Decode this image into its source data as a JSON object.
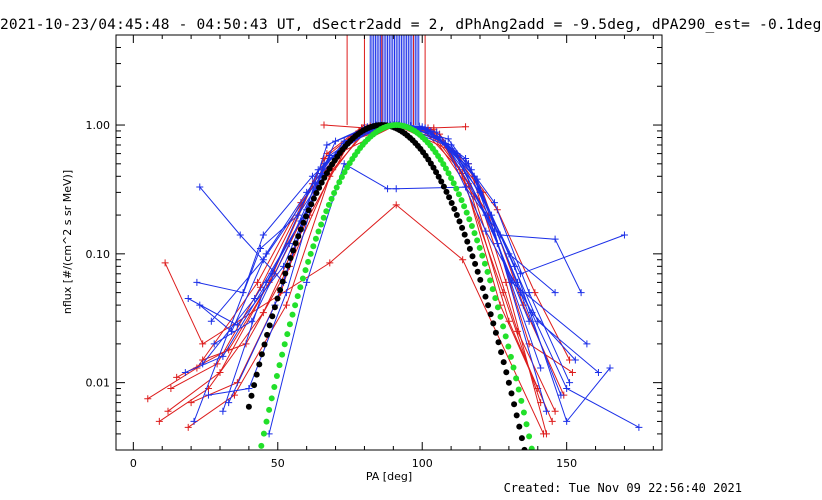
{
  "title": "2021-10-23/04:45:48 - 04:50:43 UT, dSectr2add = 2, dPhAng2add = -9.5deg, dPA290_est= -0.1deg",
  "footer": "Created: Tue Nov 09 22:56:40 2021",
  "colors": {
    "red": "#dd1c1c",
    "blue": "#1b2fe8",
    "green": "#22e02a",
    "black": "#000000",
    "axes": "#000000"
  },
  "chart_data": {
    "type": "line",
    "xlabel": "PA [deg]",
    "ylabel": "nflux [#/(cm^2 s sr MeV)]",
    "xlim": [
      -6,
      183
    ],
    "ylim": [
      0.003,
      5.0
    ],
    "yscale": "log",
    "x_ticks": [
      0,
      50,
      100,
      150
    ],
    "x_tick_labels": [
      "0",
      "50",
      "100",
      "150"
    ],
    "y_ticks": [
      0.01,
      0.1,
      1.0
    ],
    "y_tick_labels": [
      "0.01",
      "0.10",
      "1.00"
    ],
    "series": [
      {
        "color": "red",
        "marker": "+",
        "x": [
          19,
          35,
          53,
          68,
          80,
          92,
          104,
          116,
          130,
          145
        ],
        "y": [
          0.0045,
          0.008,
          0.04,
          0.4,
          0.92,
          1.0,
          0.92,
          0.35,
          0.03,
          0.005
        ]
      },
      {
        "color": "red",
        "marker": "+",
        "x": [
          12,
          30,
          47,
          66,
          79,
          90,
          101,
          113,
          128,
          141
        ],
        "y": [
          0.006,
          0.012,
          0.06,
          0.55,
          0.95,
          1.0,
          0.88,
          0.45,
          0.05,
          0.007
        ]
      },
      {
        "color": "red",
        "marker": "+",
        "x": [
          5,
          22,
          43,
          58,
          71,
          91,
          112,
          126,
          139,
          151
        ],
        "y": [
          0.0075,
          0.013,
          0.06,
          0.25,
          0.6,
          1.0,
          0.6,
          0.22,
          0.05,
          0.015
        ]
      },
      {
        "color": "red",
        "marker": "+",
        "x": [
          9,
          26,
          45,
          61,
          75,
          91,
          106,
          121,
          135,
          149
        ],
        "y": [
          0.005,
          0.009,
          0.035,
          0.2,
          0.75,
          1.0,
          0.85,
          0.3,
          0.04,
          0.008
        ]
      },
      {
        "color": "red",
        "marker": "+",
        "x": [
          20,
          36,
          51,
          67,
          80,
          91,
          103,
          116,
          129,
          143
        ],
        "y": [
          0.007,
          0.01,
          0.05,
          0.6,
          1.0,
          1.0,
          0.9,
          0.5,
          0.06,
          0.004
        ]
      },
      {
        "color": "red",
        "marker": "+",
        "x": [
          15,
          33,
          49,
          63,
          77,
          90,
          104,
          118,
          133,
          146
        ],
        "y": [
          0.011,
          0.018,
          0.07,
          0.3,
          0.85,
          1.0,
          0.8,
          0.28,
          0.025,
          0.006
        ]
      },
      {
        "color": "red",
        "marker": "+",
        "x": [
          24,
          39,
          54,
          69,
          82,
          92,
          102,
          114,
          127,
          140
        ],
        "y": [
          0.015,
          0.02,
          0.08,
          0.45,
          0.98,
          1.0,
          0.95,
          0.42,
          0.04,
          0.009
        ]
      },
      {
        "color": "red",
        "marker": "+",
        "x": [
          11,
          24,
          68,
          91,
          114,
          142
        ],
        "y": [
          0.085,
          0.02,
          0.085,
          0.24,
          0.09,
          0.004
        ]
      },
      {
        "color": "red",
        "marker": "+",
        "x": [
          66,
          80,
          91,
          104,
          115
        ],
        "y": [
          1.0,
          0.95,
          1.0,
          0.95,
          0.97
        ]
      },
      {
        "color": "red",
        "marker": "+",
        "x": [
          13,
          29,
          44,
          62,
          76,
          91,
          107,
          123,
          137,
          152
        ],
        "y": [
          0.009,
          0.014,
          0.055,
          0.35,
          0.8,
          1.0,
          0.75,
          0.2,
          0.02,
          0.012
        ]
      },
      {
        "color": "blue",
        "marker": "+",
        "x": [
          23,
          37,
          52,
          67,
          81,
          91,
          101,
          115,
          130,
          146
        ],
        "y": [
          0.33,
          0.14,
          0.06,
          0.7,
          0.97,
          1.0,
          0.94,
          0.55,
          0.1,
          0.05
        ]
      },
      {
        "color": "blue",
        "marker": "+",
        "x": [
          22,
          38,
          45,
          62,
          78,
          91,
          108,
          122,
          138,
          153
        ],
        "y": [
          0.06,
          0.05,
          0.14,
          0.4,
          0.85,
          1.0,
          0.7,
          0.15,
          0.035,
          0.015
        ]
      },
      {
        "color": "blue",
        "marker": "+",
        "x": [
          23,
          34,
          46,
          60,
          73,
          91,
          109,
          125,
          137,
          151
        ],
        "y": [
          0.04,
          0.025,
          0.1,
          0.3,
          0.75,
          1.0,
          0.78,
          0.25,
          0.05,
          0.01
        ]
      },
      {
        "color": "blue",
        "marker": "+",
        "x": [
          28,
          41,
          54,
          70,
          84,
          92,
          100,
          112,
          126,
          141
        ],
        "y": [
          0.02,
          0.03,
          0.12,
          0.75,
          1.0,
          1.0,
          0.97,
          0.6,
          0.12,
          0.013
        ]
      },
      {
        "color": "blue",
        "marker": "+",
        "x": [
          18,
          31,
          48,
          64,
          79,
          91,
          105,
          119,
          134,
          148
        ],
        "y": [
          0.012,
          0.016,
          0.07,
          0.45,
          0.9,
          1.0,
          0.88,
          0.38,
          0.05,
          0.008
        ]
      },
      {
        "color": "blue",
        "marker": "+",
        "x": [
          26,
          40,
          53,
          66,
          80,
          90,
          102,
          117,
          131,
          157
        ],
        "y": [
          0.008,
          0.009,
          0.05,
          0.5,
          0.95,
          1.0,
          0.92,
          0.45,
          0.06,
          0.02
        ]
      },
      {
        "color": "blue",
        "marker": "+",
        "x": [
          21,
          44,
          57,
          71,
          83,
          92,
          110,
          124,
          140,
          161
        ],
        "y": [
          0.005,
          0.11,
          0.2,
          0.6,
          0.97,
          1.0,
          0.7,
          0.2,
          0.03,
          0.012
        ]
      },
      {
        "color": "blue",
        "marker": "+",
        "x": [
          31,
          46,
          60,
          73,
          85,
          91,
          99,
          111,
          125,
          143
        ],
        "y": [
          0.006,
          0.06,
          0.22,
          0.72,
          0.98,
          1.0,
          0.98,
          0.62,
          0.15,
          0.006
        ]
      },
      {
        "color": "blue",
        "marker": "+",
        "x": [
          24,
          42,
          58,
          72,
          86,
          91,
          96,
          108,
          122,
          137
        ],
        "y": [
          0.014,
          0.045,
          0.18,
          0.65,
          1.0,
          1.0,
          0.99,
          0.72,
          0.2,
          0.03
        ]
      },
      {
        "color": "blue",
        "marker": "+",
        "x": [
          47,
          60,
          73,
          88,
          91,
          115,
          127,
          146,
          155
        ],
        "y": [
          0.004,
          0.06,
          0.5,
          0.32,
          0.32,
          0.33,
          0.14,
          0.13,
          0.05
        ]
      },
      {
        "color": "blue",
        "marker": "+",
        "x": [
          27,
          45,
          63,
          77,
          89,
          91,
          94,
          106,
          120,
          134,
          170
        ],
        "y": [
          0.03,
          0.09,
          0.35,
          0.82,
          1.0,
          1.0,
          1.0,
          0.8,
          0.3,
          0.07,
          0.14
        ]
      },
      {
        "color": "blue",
        "marker": "+",
        "x": [
          33,
          49,
          65,
          79,
          90,
          92,
          103,
          118,
          132,
          150,
          165
        ],
        "y": [
          0.007,
          0.04,
          0.42,
          0.9,
          1.0,
          1.0,
          0.9,
          0.4,
          0.08,
          0.005,
          0.013
        ]
      },
      {
        "color": "blue",
        "marker": "+",
        "x": [
          19,
          36,
          52,
          68,
          82,
          91,
          101,
          116,
          133,
          150,
          175
        ],
        "y": [
          0.045,
          0.028,
          0.08,
          0.58,
          0.95,
          1.0,
          0.95,
          0.5,
          0.06,
          0.009,
          0.0045
        ]
      }
    ],
    "fit_curves": [
      {
        "name": "",
        "color": "black",
        "marker": "dot",
        "center": 86,
        "width": 20.5,
        "x_range": [
          40,
          145
        ]
      },
      {
        "name": "",
        "color": "green",
        "marker": "dot",
        "center": 91,
        "width": 19.5,
        "x_range": [
          38,
          147
        ]
      }
    ],
    "spikes": {
      "blue_x_range": [
        82,
        99
      ],
      "red_x": [
        74,
        80,
        86,
        97,
        101
      ]
    }
  }
}
